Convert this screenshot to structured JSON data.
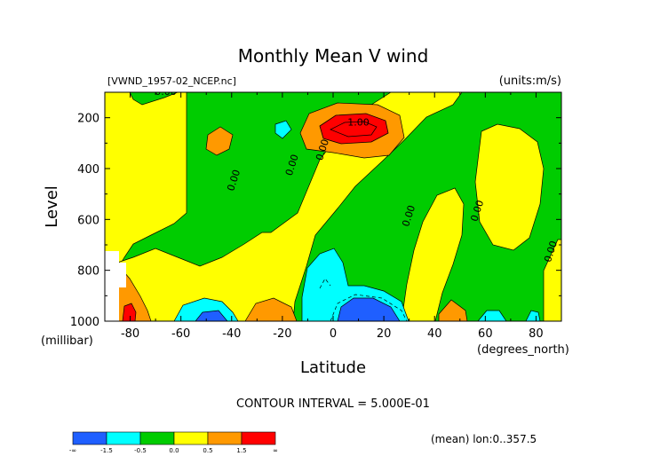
{
  "chart_data": {
    "type": "heatmap",
    "subtype": "filled-contour",
    "title": "Monthly Mean V wind",
    "file_label": "[VWND_1957-02_NCEP.nc]",
    "units_label": "(units:m/s)",
    "xlabel": "Latitude",
    "x_unit_label": "(degrees_north)",
    "ylabel": "Level",
    "y_unit_label": "(millibar)",
    "xlim": [
      -90,
      90
    ],
    "ylim": [
      1000,
      100
    ],
    "x_ticks": [
      -80,
      -60,
      -40,
      -20,
      0,
      20,
      40,
      60,
      80
    ],
    "y_ticks": [
      200,
      400,
      600,
      800,
      1000
    ],
    "contour_interval_text": "CONTOUR INTERVAL = 5.000E-01",
    "footnote": "(mean) lon:0..357.5",
    "contour_labels": [
      {
        "text": "0.00",
        "lat": -66,
        "level": 110
      },
      {
        "text": "1.00",
        "lat": 10,
        "level": 230
      },
      {
        "text": "0.00",
        "lat": -38,
        "level": 450
      },
      {
        "text": "0.00",
        "lat": -15,
        "level": 390
      },
      {
        "text": "0.00",
        "lat": -3,
        "level": 330
      },
      {
        "text": "0.00",
        "lat": 31,
        "level": 590
      },
      {
        "text": "0.00",
        "lat": 58,
        "level": 570
      },
      {
        "text": "0.00",
        "lat": 87,
        "level": 730
      }
    ],
    "colorbar": {
      "bins": [
        {
          "color": "#1f5fff",
          "range": [
            null,
            -1.5
          ]
        },
        {
          "color": "#00ffff",
          "range": [
            -1.5,
            -0.5
          ]
        },
        {
          "color": "#00cc00",
          "range": [
            -0.5,
            0.0
          ]
        },
        {
          "color": "#ffff00",
          "range": [
            0.0,
            0.5
          ]
        },
        {
          "color": "#ff9900",
          "range": [
            0.5,
            1.5
          ]
        },
        {
          "color": "#ff0000",
          "range": [
            1.5,
            null
          ]
        }
      ],
      "tick_labels": [
        "-∞",
        "-1.5",
        "-0.5",
        "0.0",
        "0.5",
        "1.5",
        "∞"
      ]
    }
  }
}
